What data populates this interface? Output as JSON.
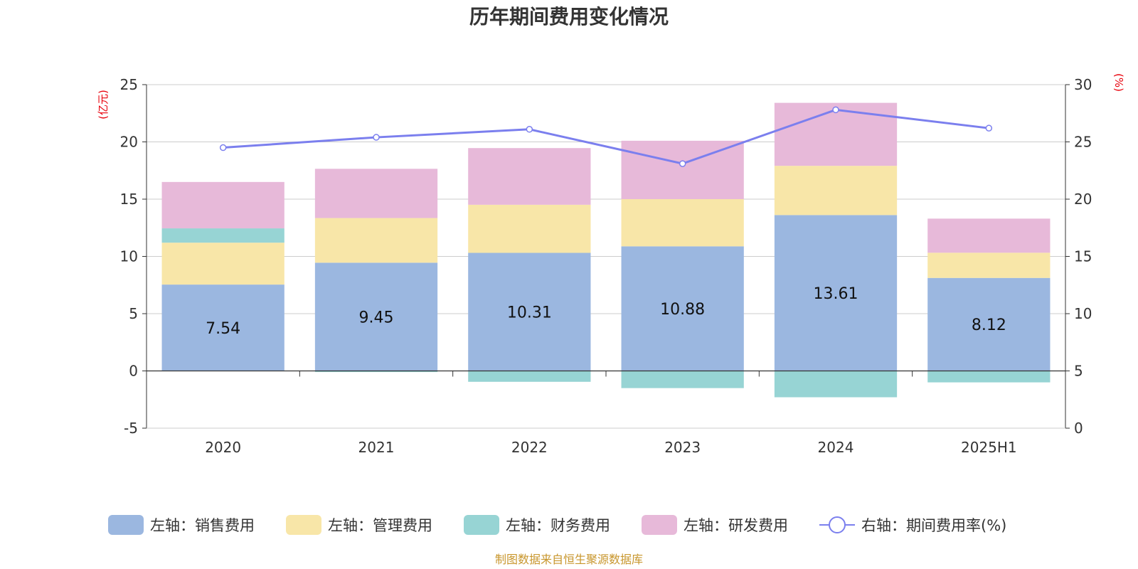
{
  "chart_data": {
    "type": "bar",
    "title": "历年期间费用变化情况",
    "categories": [
      "2020",
      "2021",
      "2022",
      "2023",
      "2024",
      "2025H1"
    ],
    "left_axis": {
      "unit": "(亿元)",
      "ylim": [
        -5,
        25
      ],
      "ticks": [
        "-5",
        "0",
        "5",
        "10",
        "15",
        "20",
        "25"
      ]
    },
    "right_axis": {
      "unit": "(%)",
      "ylim": [
        0,
        30
      ],
      "ticks": [
        "0",
        "5",
        "10",
        "15",
        "20",
        "25",
        "30"
      ]
    },
    "grid": true,
    "legend_position": "bottom",
    "series": [
      {
        "name": "左轴：销售费用",
        "type": "bar",
        "axis": "left",
        "color": "#9bb7e0",
        "values": [
          7.54,
          9.45,
          10.31,
          10.88,
          13.61,
          8.12
        ],
        "labels": [
          "7.54",
          "9.45",
          "10.31",
          "10.88",
          "13.61",
          "8.12"
        ]
      },
      {
        "name": "左轴：管理费用",
        "type": "bar",
        "axis": "left",
        "color": "#f8e6a8",
        "values": [
          3.66,
          3.9,
          4.2,
          4.12,
          4.3,
          2.2
        ]
      },
      {
        "name": "左轴：财务费用",
        "type": "bar",
        "axis": "left",
        "color": "#97d4d4",
        "values": [
          1.25,
          -0.1,
          -0.95,
          -1.5,
          -2.3,
          -1.0
        ]
      },
      {
        "name": "左轴：研发费用",
        "type": "bar",
        "axis": "left",
        "color": "#e7b9d9",
        "values": [
          4.05,
          4.3,
          4.95,
          5.1,
          5.5,
          2.98
        ]
      },
      {
        "name": "右轴：期间费用率(%)",
        "type": "line",
        "axis": "right",
        "color": "#7b7fee",
        "values": [
          24.5,
          25.4,
          26.1,
          23.1,
          27.8,
          26.2
        ]
      }
    ],
    "source": "制图数据来自恒生聚源数据库"
  }
}
